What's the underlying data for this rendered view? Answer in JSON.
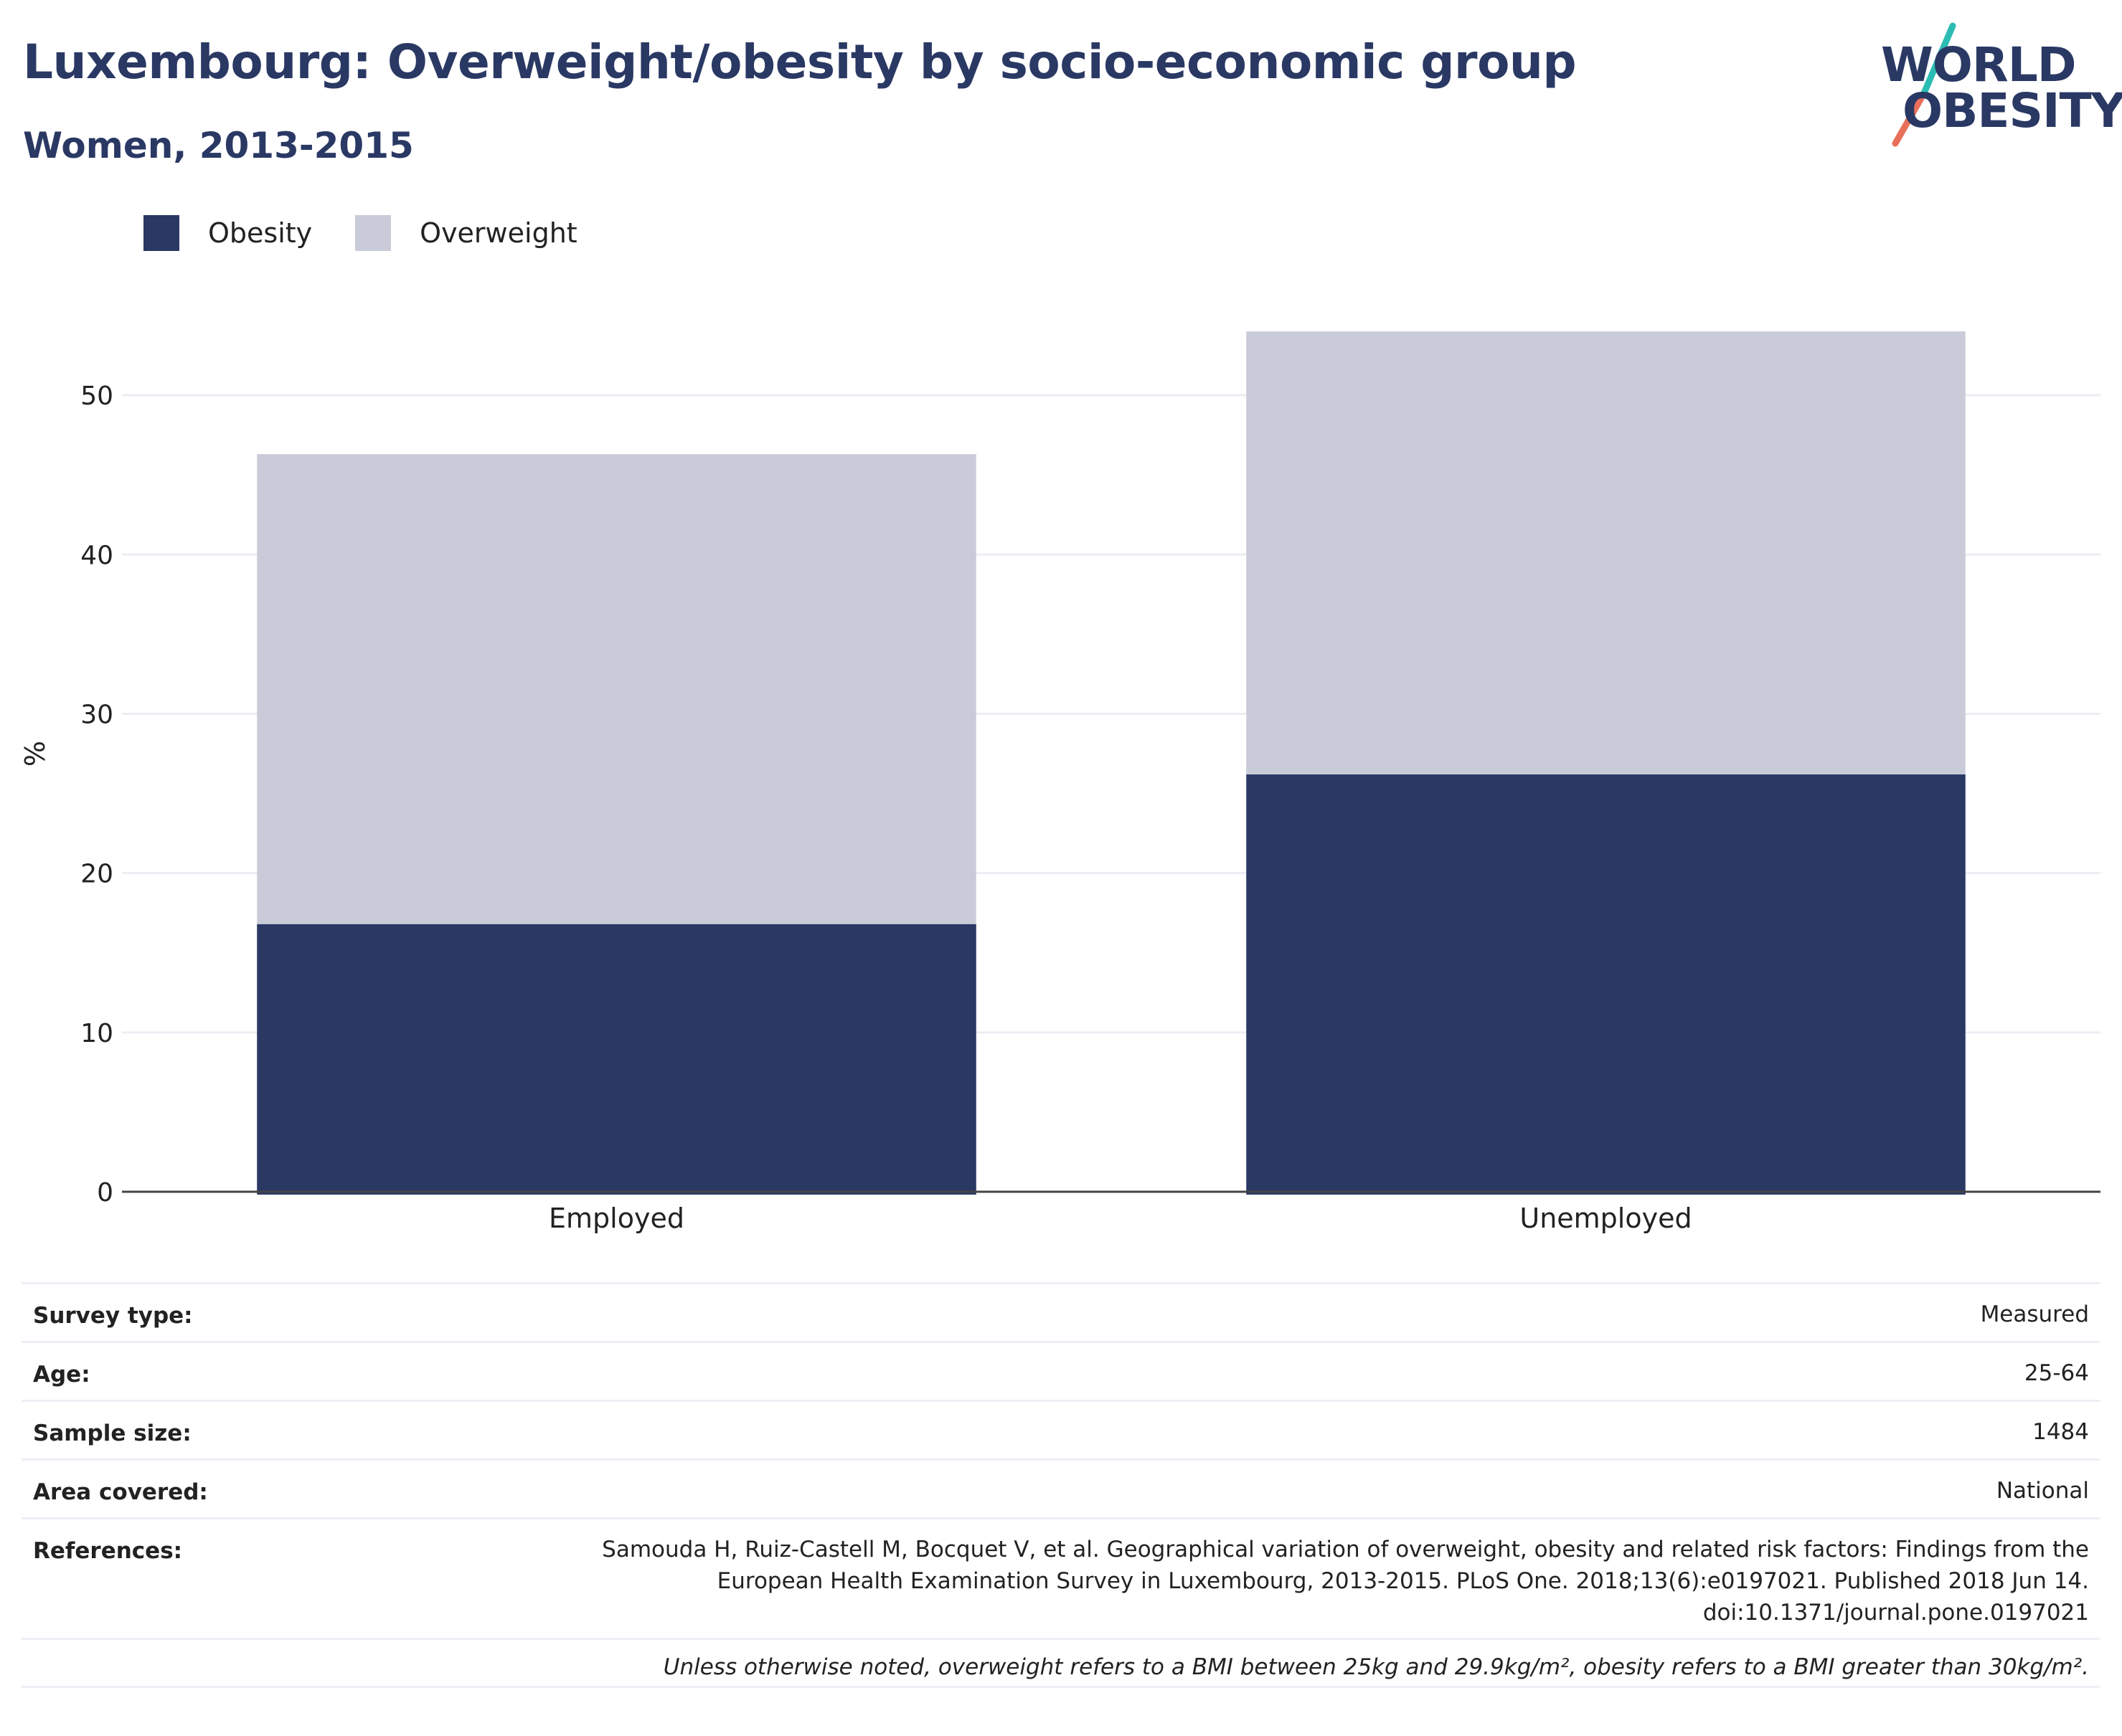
{
  "header": {
    "title": "Luxembourg: Overweight/obesity by socio-economic group",
    "subtitle": "Women, 2013-2015"
  },
  "logo": {
    "line1": "WORLD",
    "line2": "OBESITY",
    "accent_teal": "#2bbcb4",
    "accent_coral": "#e8705a"
  },
  "colors": {
    "obesity": "#2a3864",
    "overweight": "#c9ccd8",
    "grid": "#eceef4",
    "axis": "#444444",
    "text": "#222222"
  },
  "chart_data": {
    "type": "bar",
    "stacked": true,
    "categories": [
      "Employed",
      "Unemployed"
    ],
    "series": [
      {
        "name": "Obesity",
        "values": [
          16.8,
          26.2
        ]
      },
      {
        "name": "Overweight",
        "values": [
          29.5,
          27.8
        ]
      }
    ],
    "ylabel": "%",
    "ylim": [
      0,
      55
    ],
    "yticks": [
      0,
      10,
      20,
      30,
      40,
      50
    ],
    "grid": true,
    "legend_position": "top-left"
  },
  "meta": {
    "survey_type": {
      "label": "Survey type:",
      "value": "Measured"
    },
    "age": {
      "label": "Age:",
      "value": "25-64"
    },
    "sample_size": {
      "label": "Sample size:",
      "value": "1484"
    },
    "area_covered": {
      "label": "Area covered:",
      "value": "National"
    },
    "references": {
      "label": "References:",
      "line1": "Samouda H, Ruiz-Castell M, Bocquet V, et al. Geographical variation of overweight, obesity and related risk factors: Findings from the",
      "line2": "European Health Examination Survey in Luxembourg, 2013-2015. PLoS One. 2018;13(6):e0197021. Published 2018 Jun 14.",
      "line3": "doi:10.1371/journal.pone.0197021"
    },
    "note": "Unless otherwise noted, overweight refers to a BMI between 25kg and 29.9kg/m², obesity refers to a BMI greater than 30kg/m²."
  }
}
